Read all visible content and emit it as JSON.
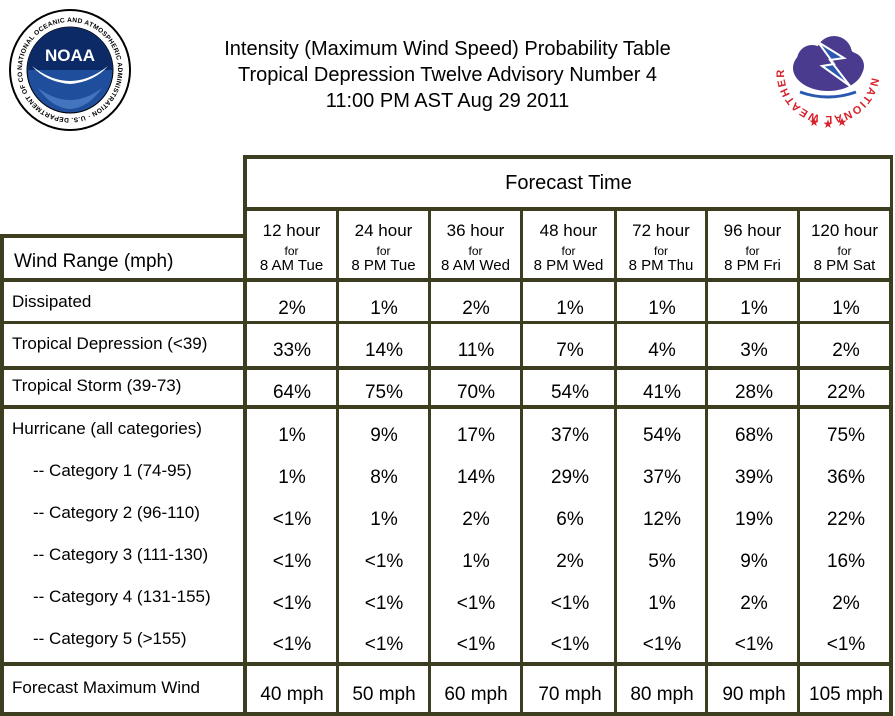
{
  "header": {
    "title_line1": "Intensity (Maximum Wind Speed) Probability Table",
    "title_line2": "Tropical Depression Twelve Advisory Number 4",
    "title_line3": "11:00 PM AST Aug 29 2011"
  },
  "logos": {
    "noaa_text": "NOAA",
    "noaa_ring_text": "NATIONAL OCEANIC AND ATMOSPHERIC ADMINISTRATION · U.S. DEPARTMENT OF COMMERCE",
    "nws_ring_text": "NATIONAL WEATHER SERVICE"
  },
  "table": {
    "forecast_time_label": "Forecast Time",
    "wind_range_label": "Wind Range (mph)",
    "columns": [
      {
        "hours": "12 hour",
        "for": "for",
        "time": "8 AM Tue"
      },
      {
        "hours": "24 hour",
        "for": "for",
        "time": "8 PM Tue"
      },
      {
        "hours": "36 hour",
        "for": "for",
        "time": "8 AM Wed"
      },
      {
        "hours": "48 hour",
        "for": "for",
        "time": "8 PM Wed"
      },
      {
        "hours": "72 hour",
        "for": "for",
        "time": "8 PM Thu"
      },
      {
        "hours": "96 hour",
        "for": "for",
        "time": "8 PM Fri"
      },
      {
        "hours": "120 hour",
        "for": "for",
        "time": "8 PM Sat"
      }
    ],
    "rows": [
      {
        "label": "Dissipated",
        "values": [
          "2%",
          "1%",
          "2%",
          "1%",
          "1%",
          "1%",
          "1%"
        ]
      },
      {
        "label": "Tropical Depression (<39)",
        "values": [
          "33%",
          "14%",
          "11%",
          "7%",
          "4%",
          "3%",
          "2%"
        ]
      },
      {
        "label": "Tropical Storm (39-73)",
        "values": [
          "64%",
          "75%",
          "70%",
          "54%",
          "41%",
          "28%",
          "22%"
        ]
      },
      {
        "label": "Hurricane (all categories)",
        "values": [
          "1%",
          "9%",
          "17%",
          "37%",
          "54%",
          "68%",
          "75%"
        ]
      },
      {
        "label": "-- Category 1 (74-95)",
        "values": [
          "1%",
          "8%",
          "14%",
          "29%",
          "37%",
          "39%",
          "36%"
        ]
      },
      {
        "label": "-- Category 2 (96-110)",
        "values": [
          "<1%",
          "1%",
          "2%",
          "6%",
          "12%",
          "19%",
          "22%"
        ]
      },
      {
        "label": "-- Category 3 (111-130)",
        "values": [
          "<1%",
          "<1%",
          "1%",
          "2%",
          "5%",
          "9%",
          "16%"
        ]
      },
      {
        "label": "-- Category 4 (131-155)",
        "values": [
          "<1%",
          "<1%",
          "<1%",
          "<1%",
          "1%",
          "2%",
          "2%"
        ]
      },
      {
        "label": "-- Category 5 (>155)",
        "values": [
          "<1%",
          "<1%",
          "<1%",
          "<1%",
          "<1%",
          "<1%",
          "<1%"
        ]
      },
      {
        "label": "Forecast Maximum Wind",
        "values": [
          "40 mph",
          "50 mph",
          "60 mph",
          "70 mph",
          "80 mph",
          "90 mph",
          "105 mph"
        ]
      }
    ]
  },
  "colors": {
    "frame": "#3d3d1f",
    "noaa_blue": "#1f4e9c",
    "noaa_navy": "#0b2a66",
    "nws_red": "#d8212b",
    "nws_cloud": "#4a3b8f",
    "nws_bolt_blue": "#2a5ab0"
  }
}
